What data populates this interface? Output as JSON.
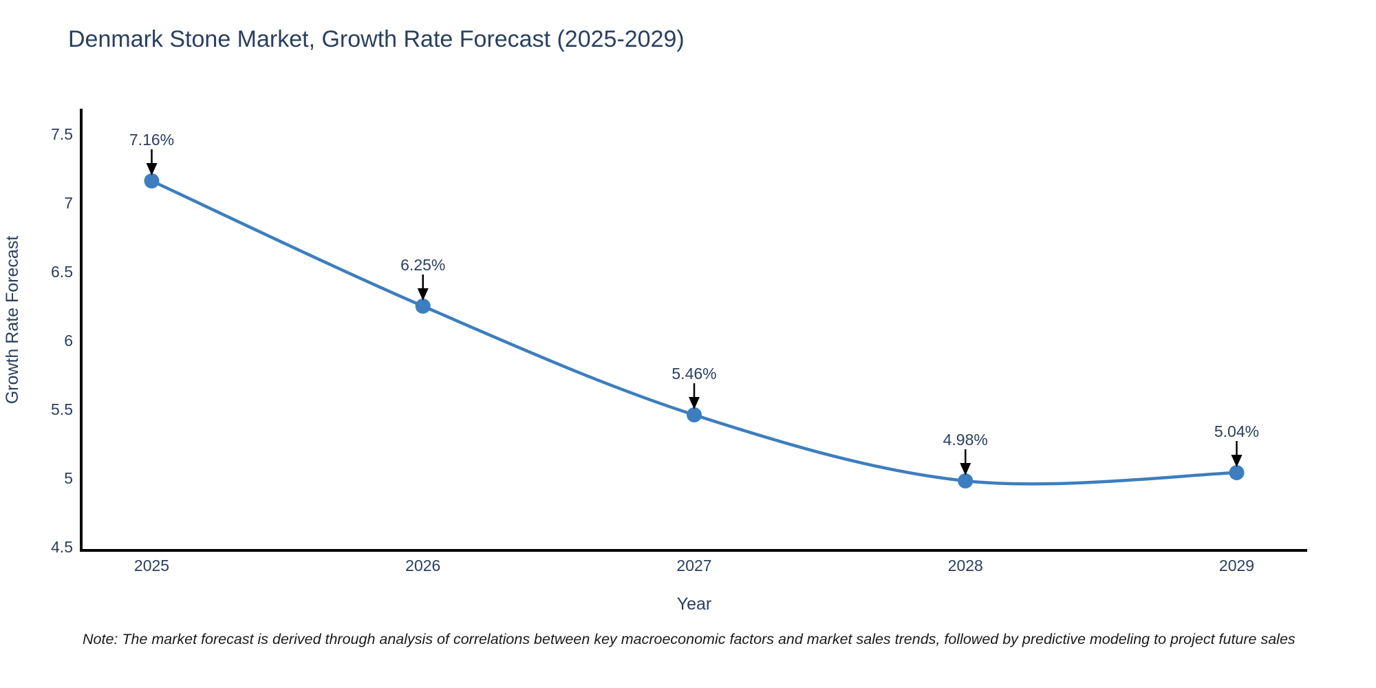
{
  "page": {
    "title": "Denmark Stone Market, Growth Rate Forecast (2025-2029)",
    "note": "Note: The market forecast is derived through analysis of correlations between key macroeconomic factors and market sales trends, followed by predictive modeling to project future sales"
  },
  "chart_data": {
    "type": "line",
    "title": "Denmark Stone Market, Growth Rate Forecast (2025-2029)",
    "xlabel": "Year",
    "ylabel": "Growth Rate Forecast",
    "x": [
      2025,
      2026,
      2027,
      2028,
      2029
    ],
    "values": [
      7.16,
      6.25,
      5.46,
      4.98,
      5.04
    ],
    "point_labels": [
      "7.16%",
      "6.25%",
      "5.46%",
      "4.98%",
      "5.04%"
    ],
    "xtick_labels": [
      "2025",
      "2026",
      "2027",
      "2028",
      "2029"
    ],
    "ytick_values": [
      4.5,
      5,
      5.5,
      6,
      6.5,
      7,
      7.5
    ],
    "ytick_labels": [
      "4.5",
      "5",
      "5.5",
      "6",
      "6.5",
      "7",
      "7.5"
    ],
    "xlim": [
      2024.74,
      2029.26
    ],
    "ylim": [
      4.475,
      7.675
    ],
    "grid": false,
    "legend": "none",
    "line_shape": "spline",
    "colors": {
      "line": "#3d7ebd",
      "marker": "#3c7ebf",
      "arrow": "#000000",
      "axis": "#000000",
      "text": "#2a3f5f",
      "note_text": "#1a1a1a",
      "background": "#ffffff"
    }
  }
}
